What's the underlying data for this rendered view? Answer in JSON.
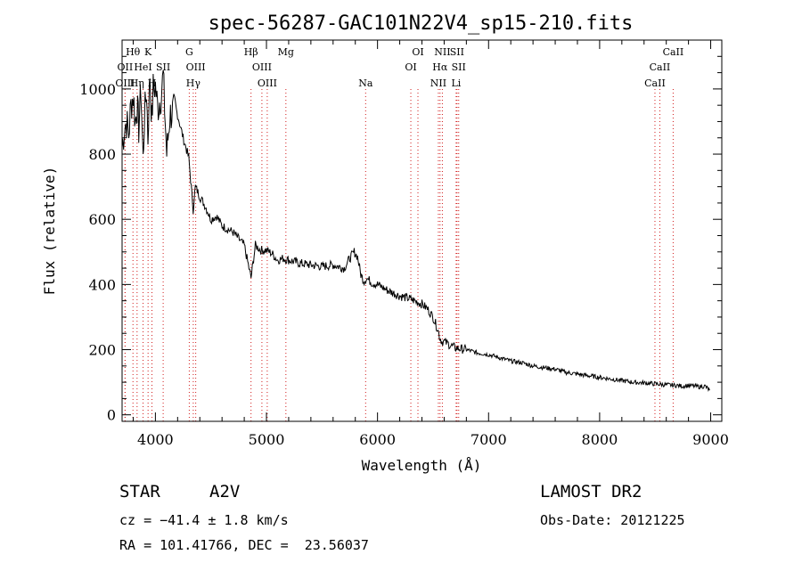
{
  "chart_data": {
    "type": "line",
    "title": "spec-56287-GAC101N22V4_sp15-210.fits",
    "xlabel": "Wavelength (Å)",
    "ylabel": "Flux (relative)",
    "xlim": [
      3700,
      9100
    ],
    "ylim": [
      -20,
      1150
    ],
    "xticks": [
      4000,
      5000,
      6000,
      7000,
      8000,
      9000
    ],
    "yticks": [
      0,
      200,
      400,
      600,
      800,
      1000
    ],
    "grid": false,
    "series": [
      {
        "x": [
          3700,
          3720,
          3740,
          3760,
          3780,
          3800,
          3820,
          3835,
          3850,
          3870,
          3889,
          3900,
          3920,
          3933,
          3950,
          3968,
          3980,
          4000,
          4020,
          4050,
          4070,
          4102,
          4130,
          4160,
          4200,
          4250,
          4300,
          4340,
          4360,
          4400,
          4450,
          4500,
          4550,
          4600,
          4650,
          4700,
          4750,
          4800,
          4861,
          4900,
          4950,
          5000,
          5050,
          5100,
          5150,
          5200,
          5300,
          5400,
          5500,
          5600,
          5700,
          5750,
          5790,
          5820,
          5850,
          5880,
          5900,
          5950,
          6000,
          6100,
          6200,
          6300,
          6400,
          6450,
          6500,
          6540,
          6563,
          6580,
          6600,
          6650,
          6700,
          6800,
          6900,
          7000,
          7100,
          7200,
          7300,
          7400,
          7500,
          7600,
          7700,
          7800,
          7900,
          8000,
          8100,
          8200,
          8300,
          8400,
          8500,
          8600,
          8700,
          8750,
          8800,
          8850,
          8900,
          8950,
          8990
        ],
        "y": [
          820,
          880,
          900,
          860,
          950,
          980,
          900,
          950,
          880,
          1000,
          780,
          900,
          1000,
          850,
          1050,
          900,
          1000,
          1010,
          940,
          980,
          1040,
          800,
          920,
          930,
          920,
          850,
          790,
          630,
          700,
          670,
          640,
          600,
          610,
          580,
          570,
          560,
          540,
          520,
          420,
          520,
          505,
          505,
          495,
          475,
          480,
          475,
          465,
          460,
          455,
          460,
          450,
          480,
          500,
          485,
          430,
          410,
          420,
          405,
          400,
          380,
          365,
          355,
          340,
          325,
          300,
          265,
          235,
          225,
          225,
          215,
          205,
          200,
          190,
          185,
          175,
          165,
          160,
          150,
          145,
          140,
          130,
          125,
          120,
          115,
          110,
          105,
          100,
          98,
          95,
          92,
          90,
          88,
          90,
          88,
          86,
          88,
          75
        ]
      }
    ],
    "lines": [
      {
        "name": "Hθ",
        "wl": 3798,
        "row": 1
      },
      {
        "name": "K",
        "wl": 3934,
        "row": 1
      },
      {
        "name": "OII",
        "wl": 3727,
        "row": 2
      },
      {
        "name": "HeI",
        "wl": 3889,
        "row": 2
      },
      {
        "name": "SII",
        "wl": 4070,
        "row": 2
      },
      {
        "name": "OIII",
        "wl": 3727,
        "row": 3
      },
      {
        "name": "Hη",
        "wl": 3835,
        "row": 3
      },
      {
        "name": "H",
        "wl": 3969,
        "row": 3
      },
      {
        "name": "G",
        "wl": 4305,
        "row": 1
      },
      {
        "name": "OIII",
        "wl": 4363,
        "row": 2
      },
      {
        "name": "Hγ",
        "wl": 4341,
        "row": 3
      },
      {
        "name": "Hβ",
        "wl": 4861,
        "row": 1
      },
      {
        "name": "OIII",
        "wl": 4959,
        "row": 2
      },
      {
        "name": "OIII",
        "wl": 5007,
        "row": 3
      },
      {
        "name": "Mg",
        "wl": 5175,
        "row": 1
      },
      {
        "name": "Na",
        "wl": 5893,
        "row": 3
      },
      {
        "name": "OI",
        "wl": 6364,
        "row": 1
      },
      {
        "name": "OI",
        "wl": 6300,
        "row": 2
      },
      {
        "name": "NII",
        "wl": 6584,
        "row": 1
      },
      {
        "name": "SII",
        "wl": 6716,
        "row": 1
      },
      {
        "name": "Hα",
        "wl": 6563,
        "row": 2
      },
      {
        "name": "SII",
        "wl": 6731,
        "row": 2
      },
      {
        "name": "NII",
        "wl": 6548,
        "row": 3
      },
      {
        "name": "Li",
        "wl": 6708,
        "row": 3
      },
      {
        "name": "CaII",
        "wl": 8662,
        "row": 1
      },
      {
        "name": "CaII",
        "wl": 8542,
        "row": 2
      },
      {
        "name": "CaII",
        "wl": 8498,
        "row": 3
      }
    ]
  },
  "info": {
    "object_class": "STAR",
    "subclass": "A2V",
    "survey": "LAMOST DR2",
    "cz": "cz = −41.4 ± 1.8 km/s",
    "obs_date": "Obs-Date: 20121225",
    "coords": "RA = 101.41766, DEC =  23.56037"
  },
  "colors": {
    "spectrum": "#000000",
    "line_markers": "#d11b1b",
    "axes": "#000000"
  }
}
